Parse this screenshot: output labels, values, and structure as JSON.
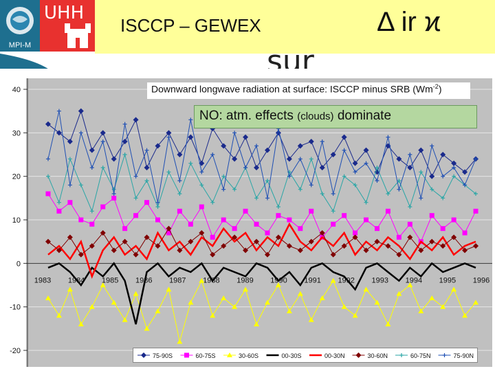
{
  "header": {
    "mpi_label": "MPI-M",
    "uhh_label": "UHH",
    "title": "ISCCP – GEWEX",
    "symbol": "Δ ir ϰ",
    "sur": "sur"
  },
  "annotation": {
    "prefix": "NO: atm. effects",
    "small": "(clouds)",
    "suffix": "dominate"
  },
  "chart_data": {
    "type": "line",
    "title": "Downward longwave radiation at surface: ISCCP minus SRB (Wm-2)",
    "title_main": "Downward longwave radiation at surface: ISCCP minus SRB (Wm",
    "title_sup": "-2",
    "title_end": ")",
    "xlabel": "",
    "ylabel": "",
    "xlim": [
      1983,
      1996
    ],
    "ylim": [
      -20,
      40
    ],
    "y_ticks": [
      40,
      30,
      20,
      10,
      0,
      -10,
      -20
    ],
    "y_tick_labels": [
      "40",
      "30",
      "20",
      "10",
      "0",
      "-10",
      "-20"
    ],
    "x_ticks": [
      1983,
      1984,
      1985,
      1986,
      1987,
      1988,
      1989,
      1990,
      1991,
      1992,
      1993,
      1994,
      1995,
      1996
    ],
    "x_tick_labels": [
      "1983",
      "1984",
      "1985",
      "1986",
      "1987",
      "1988",
      "1989",
      "1990",
      "1991",
      "1992",
      "1993",
      "1994",
      "1995",
      "1996"
    ],
    "legend_position": "bottom",
    "series": [
      {
        "name": "75-90S",
        "color": "#1a2a8c",
        "marker": "diamond",
        "values": [
          32,
          30,
          28,
          35,
          26,
          30,
          24,
          28,
          33,
          22,
          27,
          30,
          25,
          29,
          23,
          31,
          27,
          24,
          29,
          22,
          26,
          30,
          24,
          27,
          28,
          22,
          25,
          29,
          23,
          26,
          21,
          27,
          24,
          22,
          26,
          20,
          25,
          23,
          21,
          24
        ]
      },
      {
        "name": "60-75S",
        "color": "#ff00ff",
        "marker": "square",
        "values": [
          16,
          12,
          14,
          10,
          9,
          13,
          15,
          8,
          11,
          14,
          10,
          7,
          12,
          9,
          13,
          6,
          10,
          8,
          12,
          9,
          7,
          11,
          10,
          8,
          12,
          6,
          9,
          11,
          7,
          10,
          8,
          12,
          6,
          9,
          5,
          11,
          8,
          10,
          7,
          12
        ]
      },
      {
        "name": "30-60S",
        "color": "#ffff00",
        "marker": "triangle",
        "values": [
          -8,
          -12,
          -6,
          -14,
          -10,
          -5,
          -9,
          -13,
          -7,
          -15,
          -11,
          -6,
          -18,
          -9,
          -4,
          -12,
          -8,
          -10,
          -6,
          -14,
          -9,
          -5,
          -11,
          -7,
          -13,
          -8,
          -4,
          -10,
          -12,
          -6,
          -9,
          -14,
          -7,
          -5,
          -11,
          -8,
          -10,
          -6,
          -12,
          -9
        ]
      },
      {
        "name": "00-30S",
        "color": "#000000",
        "marker": "none",
        "values": [
          -1,
          0,
          -2,
          -5,
          -1,
          -3,
          0,
          -4,
          -14,
          -2,
          0,
          -3,
          -1,
          -2,
          0,
          -4,
          -1,
          -2,
          -3,
          0,
          -1,
          -4,
          -2,
          -5,
          -1,
          0,
          -2,
          -3,
          -6,
          -1,
          0,
          -2,
          -4,
          -1,
          -3,
          0,
          -2,
          -1,
          0,
          -1
        ]
      },
      {
        "name": "00-30N",
        "color": "#ff0000",
        "marker": "none",
        "values": [
          2,
          4,
          1,
          5,
          -3,
          3,
          6,
          2,
          4,
          1,
          7,
          3,
          5,
          2,
          6,
          4,
          8,
          5,
          7,
          3,
          6,
          4,
          9,
          5,
          3,
          6,
          4,
          7,
          2,
          5,
          3,
          6,
          4,
          1,
          5,
          3,
          6,
          2,
          4,
          5
        ]
      },
      {
        "name": "30-60N",
        "color": "#800000",
        "marker": "diamond",
        "values": [
          5,
          3,
          6,
          2,
          4,
          7,
          3,
          5,
          2,
          6,
          4,
          8,
          3,
          5,
          7,
          2,
          4,
          6,
          3,
          5,
          2,
          6,
          4,
          3,
          5,
          7,
          2,
          4,
          6,
          3,
          5,
          4,
          2,
          6,
          3,
          5,
          4,
          6,
          3,
          4
        ]
      },
      {
        "name": "60-75N",
        "color": "#2aa6a6",
        "marker": "plus",
        "values": [
          20,
          14,
          24,
          18,
          12,
          22,
          17,
          25,
          15,
          19,
          13,
          21,
          16,
          23,
          18,
          14,
          20,
          17,
          22,
          15,
          19,
          13,
          21,
          17,
          24,
          16,
          12,
          20,
          18,
          14,
          22,
          16,
          19,
          13,
          21,
          17,
          15,
          20,
          18,
          16
        ]
      },
      {
        "name": "75-90N",
        "color": "#1e4fb4",
        "marker": "plus",
        "values": [
          24,
          35,
          18,
          30,
          22,
          28,
          16,
          32,
          20,
          26,
          14,
          29,
          19,
          33,
          21,
          25,
          17,
          30,
          22,
          27,
          15,
          31,
          20,
          24,
          18,
          28,
          16,
          26,
          21,
          23,
          19,
          29,
          17,
          25,
          15,
          27,
          20,
          22,
          18,
          24
        ]
      }
    ]
  }
}
